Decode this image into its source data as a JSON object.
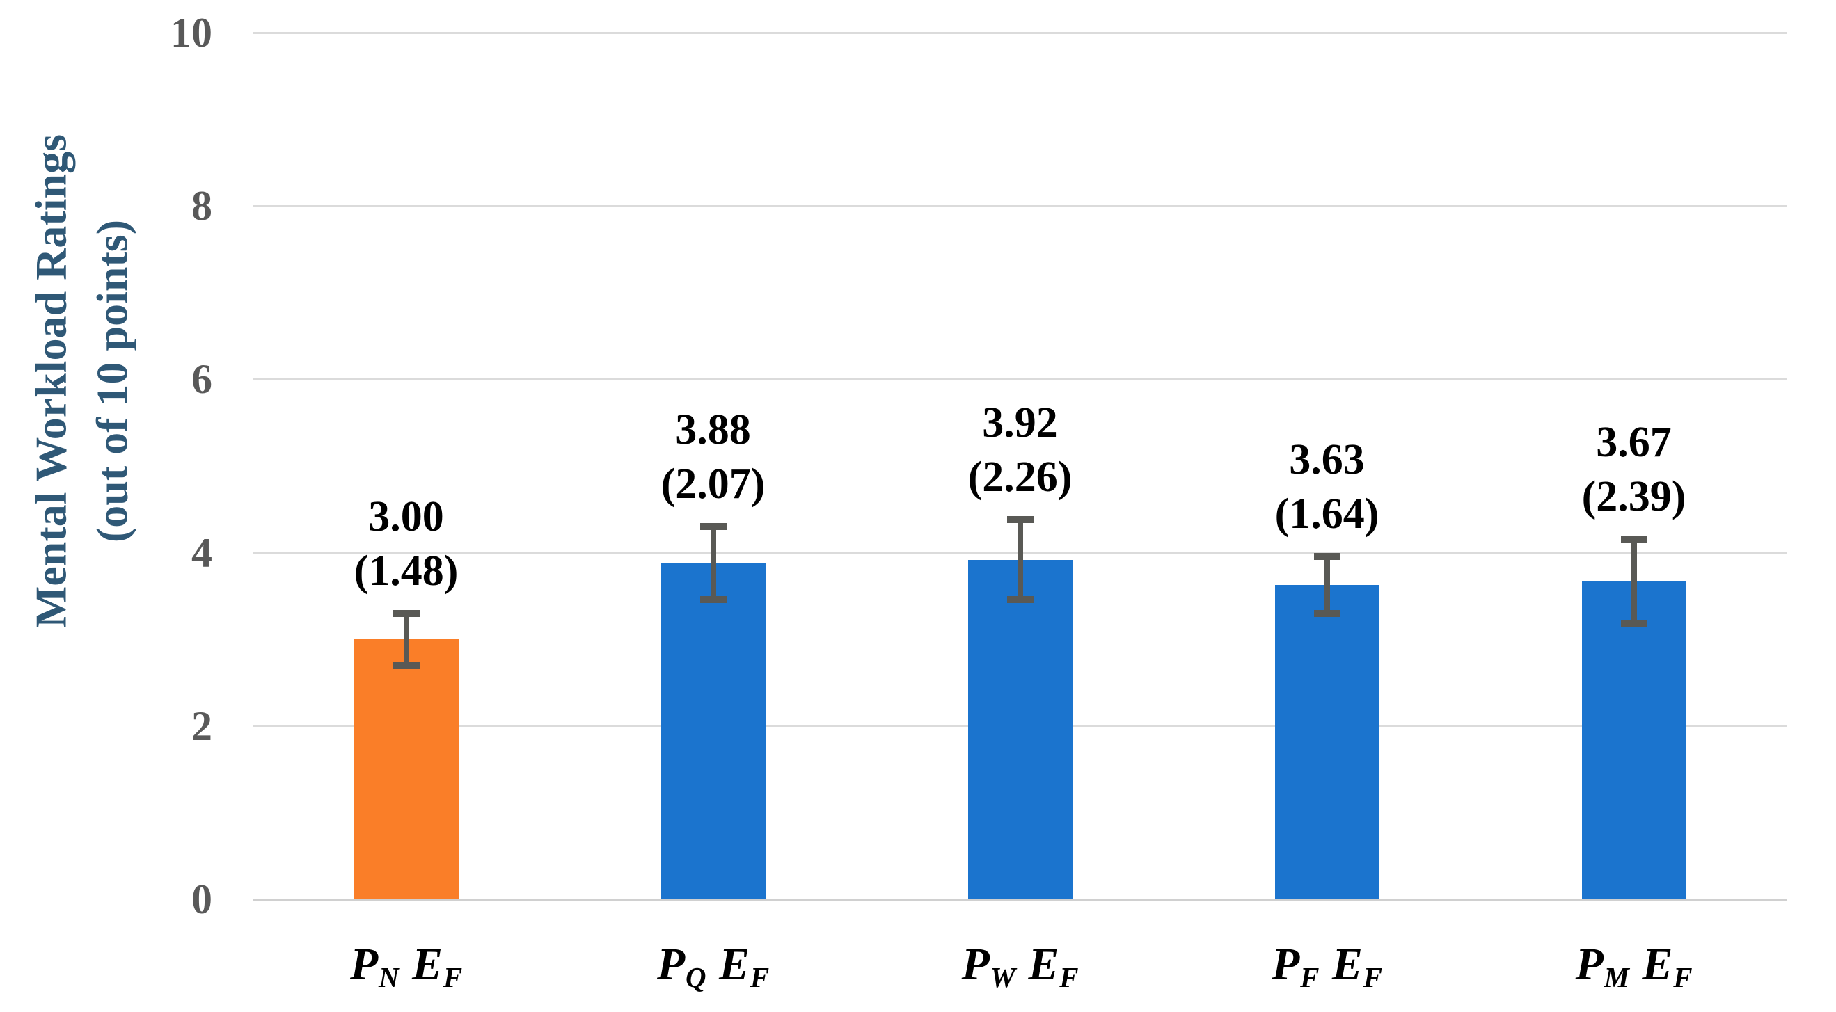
{
  "chart_data": {
    "type": "bar",
    "title": "",
    "ylabel_line1": "Mental Workload Ratings",
    "ylabel_line2": "(out of 10 points)",
    "xlabel": "",
    "ylim": [
      0,
      10
    ],
    "yticks": [
      0,
      2,
      4,
      6,
      8,
      10
    ],
    "grid": true,
    "legend_position": "none",
    "bars": [
      {
        "category_parts": [
          [
            "P",
            "N"
          ],
          [
            "E",
            "F"
          ]
        ],
        "category_text": "P_N E_F",
        "value": 3.0,
        "sd": 1.48,
        "error_half_span": 0.3,
        "value_label": "3.00",
        "sd_label": "(1.48)",
        "color": "#FA7E28"
      },
      {
        "category_parts": [
          [
            "P",
            "Q"
          ],
          [
            "E",
            "F"
          ]
        ],
        "category_text": "P_Q E_F",
        "value": 3.88,
        "sd": 2.07,
        "error_half_span": 0.42,
        "value_label": "3.88",
        "sd_label": "(2.07)",
        "color": "#1B74CE"
      },
      {
        "category_parts": [
          [
            "P",
            "W"
          ],
          [
            "E",
            "F"
          ]
        ],
        "category_text": "P_W E_F",
        "value": 3.92,
        "sd": 2.26,
        "error_half_span": 0.46,
        "value_label": "3.92",
        "sd_label": "(2.26)",
        "color": "#1B74CE"
      },
      {
        "category_parts": [
          [
            "P",
            "F"
          ],
          [
            "E",
            "F"
          ]
        ],
        "category_text": "P_F E_F",
        "value": 3.63,
        "sd": 1.64,
        "error_half_span": 0.33,
        "value_label": "3.63",
        "sd_label": "(1.64)",
        "color": "#1B74CE"
      },
      {
        "category_parts": [
          [
            "P",
            "M"
          ],
          [
            "E",
            "F"
          ]
        ],
        "category_text": "P_M E_F",
        "value": 3.67,
        "sd": 2.39,
        "error_half_span": 0.49,
        "value_label": "3.67",
        "sd_label": "(2.39)",
        "color": "#1B74CE"
      }
    ],
    "colors": {
      "highlight_bar": "#FA7E28",
      "default_bar": "#1B74CE",
      "error_bar": "#595955",
      "gridline": "#DBDBDB",
      "axis_line": "#D0D0D0",
      "tick_label": "#595959",
      "ylabel": "#2F5876",
      "data_label": "#000000",
      "background": "#FFFFFF"
    }
  }
}
